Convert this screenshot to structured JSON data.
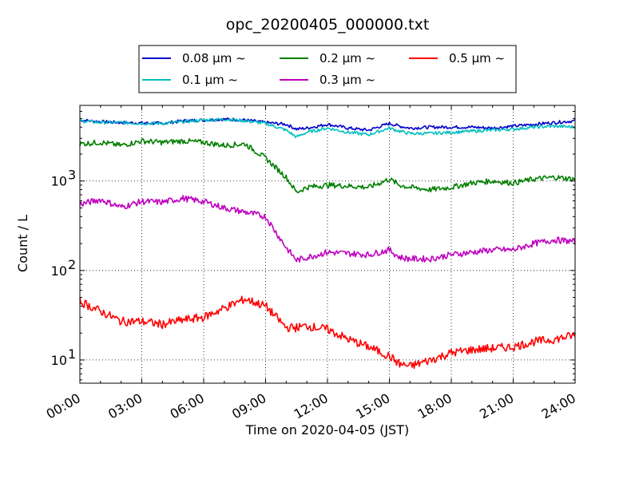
{
  "chart_data": {
    "type": "line",
    "title": "opc_20200405_000000.txt",
    "xlabel": "Time on 2020-04-05 (JST)",
    "ylabel": "Count / L",
    "yscale": "log",
    "xlim": [
      "00:00",
      "24:00"
    ],
    "ylim": [
      5.5,
      7000
    ],
    "grid": true,
    "legend_position": "top-center",
    "x_ticks": [
      "00:00",
      "03:00",
      "06:00",
      "09:00",
      "12:00",
      "15:00",
      "18:00",
      "21:00",
      "24:00"
    ],
    "y_ticks": [
      {
        "value": 10,
        "base": "10",
        "exp": "1"
      },
      {
        "value": 100,
        "base": "10",
        "exp": "2"
      },
      {
        "value": 1000,
        "base": "10",
        "exp": "3"
      }
    ],
    "x": [
      "00:00",
      "01:00",
      "02:00",
      "03:00",
      "04:00",
      "05:00",
      "06:00",
      "07:00",
      "08:00",
      "09:00",
      "10:00",
      "10:30",
      "11:00",
      "12:00",
      "13:00",
      "14:00",
      "15:00",
      "15:30",
      "16:00",
      "17:00",
      "18:00",
      "19:00",
      "20:00",
      "21:00",
      "22:00",
      "23:00",
      "24:00"
    ],
    "series": [
      {
        "name": "0.08 μm ~",
        "color": "#0000cc",
        "values": [
          4800,
          4600,
          4500,
          4450,
          4400,
          4700,
          4800,
          4900,
          4800,
          4500,
          4300,
          3800,
          3900,
          4300,
          3900,
          3700,
          4400,
          4100,
          3900,
          4000,
          4000,
          4000,
          3900,
          4100,
          4300,
          4500,
          4700
        ]
      },
      {
        "name": "0.1 μm ~",
        "color": "#00bfbf",
        "values": [
          4700,
          4500,
          4500,
          4400,
          4400,
          4600,
          4800,
          4900,
          4700,
          4400,
          3700,
          3100,
          3500,
          3900,
          3500,
          3300,
          3900,
          3600,
          3400,
          3400,
          3500,
          3600,
          3700,
          3800,
          4000,
          4100,
          4000
        ]
      },
      {
        "name": "0.2 μm ~",
        "color": "#007f00",
        "values": [
          2600,
          2700,
          2500,
          2800,
          2700,
          2800,
          2700,
          2500,
          2600,
          1800,
          1100,
          750,
          850,
          900,
          880,
          850,
          1050,
          900,
          850,
          800,
          850,
          950,
          1000,
          950,
          1050,
          1100,
          1050
        ]
      },
      {
        "name": "0.3 μm ~",
        "color": "#bf00bf",
        "values": [
          550,
          620,
          510,
          590,
          580,
          640,
          590,
          500,
          450,
          400,
          180,
          130,
          140,
          160,
          155,
          150,
          170,
          140,
          135,
          135,
          150,
          160,
          170,
          170,
          200,
          220,
          210
        ]
      },
      {
        "name": "0.5 μm ~",
        "color": "#ff0000",
        "values": [
          45,
          35,
          27,
          27,
          25,
          28,
          30,
          38,
          48,
          40,
          23,
          23,
          24,
          22,
          17,
          14,
          11,
          9,
          8.5,
          10,
          12,
          13,
          13.5,
          14,
          16,
          17,
          19
        ]
      }
    ]
  }
}
